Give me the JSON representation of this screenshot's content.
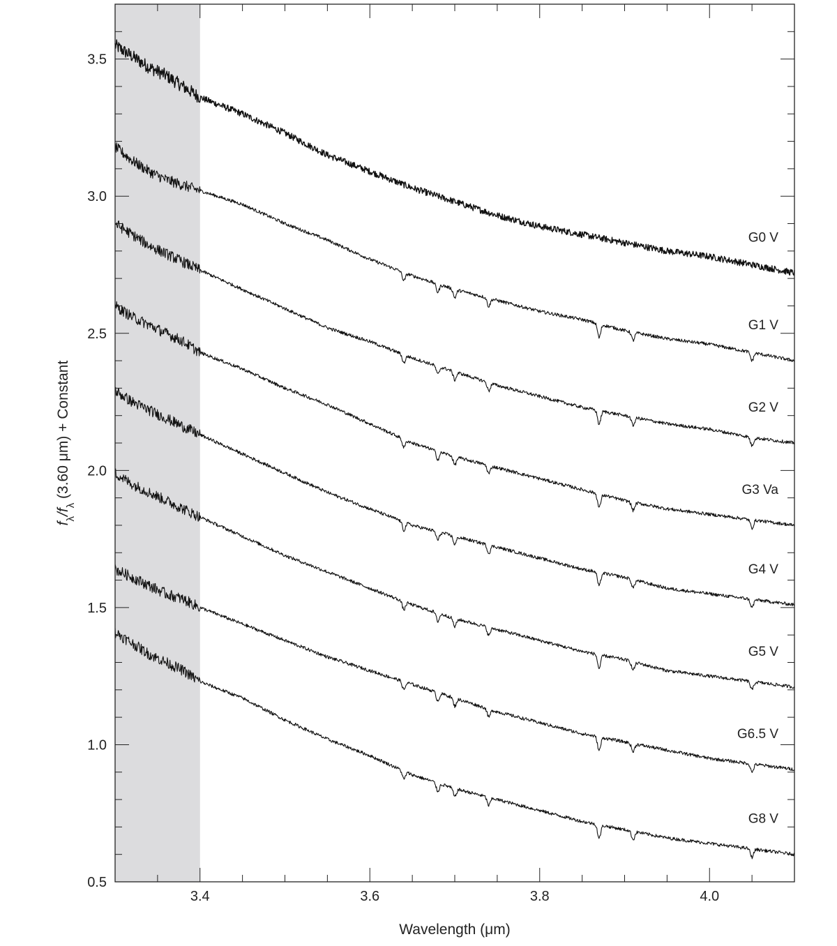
{
  "chart_data": {
    "type": "line",
    "title": "",
    "xlabel": "Wavelength (μm)",
    "ylabel_parts": [
      "f",
      "λ",
      "/f",
      "λ",
      " (3.60 μm) + Constant"
    ],
    "xlim": [
      3.3,
      4.1
    ],
    "ylim": [
      0.5,
      3.7
    ],
    "x_ticks": [
      3.4,
      3.6,
      3.8,
      4.0
    ],
    "x_tick_labels": [
      "3.4",
      "3.6",
      "3.8",
      "4.0"
    ],
    "y_ticks": [
      0.5,
      1.0,
      1.5,
      2.0,
      2.5,
      3.0,
      3.5
    ],
    "y_tick_labels": [
      "0.5",
      "1.0",
      "1.5",
      "2.0",
      "2.5",
      "3.0",
      "3.5"
    ],
    "shaded_region": {
      "x": [
        3.3,
        3.4
      ],
      "color": "#dcdcde"
    },
    "grid": false,
    "line_color": "#111111",
    "series": [
      {
        "name": "G0 V",
        "x": [
          3.3,
          3.32,
          3.34,
          3.36,
          3.38,
          3.4,
          3.45,
          3.5,
          3.55,
          3.6,
          3.65,
          3.7,
          3.75,
          3.8,
          3.85,
          3.9,
          3.95,
          4.0,
          4.05,
          4.1
        ],
        "y": [
          3.55,
          3.51,
          3.47,
          3.44,
          3.4,
          3.36,
          3.3,
          3.23,
          3.15,
          3.09,
          3.03,
          2.98,
          2.93,
          2.89,
          2.86,
          2.83,
          2.8,
          2.78,
          2.75,
          2.72
        ]
      },
      {
        "name": "G1 V",
        "x": [
          3.3,
          3.32,
          3.34,
          3.36,
          3.38,
          3.4,
          3.45,
          3.5,
          3.55,
          3.6,
          3.65,
          3.7,
          3.75,
          3.8,
          3.85,
          3.9,
          3.95,
          4.0,
          4.05,
          4.1
        ],
        "y": [
          3.18,
          3.13,
          3.09,
          3.06,
          3.04,
          3.02,
          2.97,
          2.9,
          2.84,
          2.77,
          2.71,
          2.66,
          2.62,
          2.58,
          2.55,
          2.51,
          2.48,
          2.46,
          2.43,
          2.4
        ]
      },
      {
        "name": "G2 V",
        "x": [
          3.3,
          3.32,
          3.34,
          3.36,
          3.38,
          3.4,
          3.45,
          3.5,
          3.55,
          3.6,
          3.65,
          3.7,
          3.75,
          3.8,
          3.85,
          3.9,
          3.95,
          4.0,
          4.05,
          4.1
        ],
        "y": [
          2.9,
          2.86,
          2.82,
          2.79,
          2.76,
          2.73,
          2.66,
          2.59,
          2.52,
          2.47,
          2.41,
          2.36,
          2.31,
          2.27,
          2.23,
          2.2,
          2.17,
          2.15,
          2.12,
          2.1
        ]
      },
      {
        "name": "G3 Va",
        "x": [
          3.3,
          3.32,
          3.34,
          3.36,
          3.38,
          3.4,
          3.45,
          3.5,
          3.55,
          3.6,
          3.65,
          3.7,
          3.75,
          3.8,
          3.85,
          3.9,
          3.95,
          4.0,
          4.05,
          4.1
        ],
        "y": [
          2.6,
          2.56,
          2.53,
          2.5,
          2.47,
          2.43,
          2.37,
          2.3,
          2.24,
          2.17,
          2.1,
          2.05,
          2.01,
          1.97,
          1.93,
          1.89,
          1.86,
          1.84,
          1.82,
          1.8
        ]
      },
      {
        "name": "G4 V",
        "x": [
          3.3,
          3.32,
          3.34,
          3.36,
          3.38,
          3.4,
          3.45,
          3.5,
          3.55,
          3.6,
          3.65,
          3.7,
          3.75,
          3.8,
          3.85,
          3.9,
          3.95,
          4.0,
          4.05,
          4.1
        ],
        "y": [
          2.29,
          2.25,
          2.22,
          2.19,
          2.16,
          2.13,
          2.06,
          1.99,
          1.92,
          1.86,
          1.8,
          1.76,
          1.72,
          1.68,
          1.64,
          1.61,
          1.57,
          1.55,
          1.53,
          1.51
        ]
      },
      {
        "name": "G5 V",
        "x": [
          3.3,
          3.32,
          3.34,
          3.36,
          3.38,
          3.4,
          3.45,
          3.5,
          3.55,
          3.6,
          3.65,
          3.7,
          3.75,
          3.8,
          3.85,
          3.9,
          3.95,
          4.0,
          4.05,
          4.1
        ],
        "y": [
          1.99,
          1.95,
          1.92,
          1.89,
          1.86,
          1.83,
          1.76,
          1.69,
          1.63,
          1.57,
          1.51,
          1.46,
          1.42,
          1.38,
          1.34,
          1.31,
          1.27,
          1.25,
          1.23,
          1.21
        ]
      },
      {
        "name": "G6.5 V",
        "x": [
          3.3,
          3.32,
          3.34,
          3.36,
          3.38,
          3.4,
          3.45,
          3.5,
          3.55,
          3.6,
          3.65,
          3.7,
          3.75,
          3.8,
          3.85,
          3.9,
          3.95,
          4.0,
          4.05,
          4.1
        ],
        "y": [
          1.64,
          1.61,
          1.58,
          1.55,
          1.53,
          1.5,
          1.44,
          1.38,
          1.32,
          1.27,
          1.22,
          1.17,
          1.12,
          1.08,
          1.04,
          1.01,
          0.98,
          0.95,
          0.93,
          0.91
        ]
      },
      {
        "name": "G8 V",
        "x": [
          3.3,
          3.32,
          3.34,
          3.36,
          3.38,
          3.4,
          3.45,
          3.5,
          3.55,
          3.6,
          3.65,
          3.7,
          3.75,
          3.8,
          3.85,
          3.9,
          3.95,
          4.0,
          4.05,
          4.1
        ],
        "y": [
          1.41,
          1.37,
          1.33,
          1.3,
          1.27,
          1.23,
          1.17,
          1.09,
          1.02,
          0.96,
          0.89,
          0.84,
          0.8,
          0.76,
          0.72,
          0.69,
          0.66,
          0.64,
          0.62,
          0.6
        ]
      }
    ],
    "absorption_features_um": [
      3.64,
      3.68,
      3.7,
      3.74,
      3.87,
      3.91,
      4.05
    ]
  }
}
